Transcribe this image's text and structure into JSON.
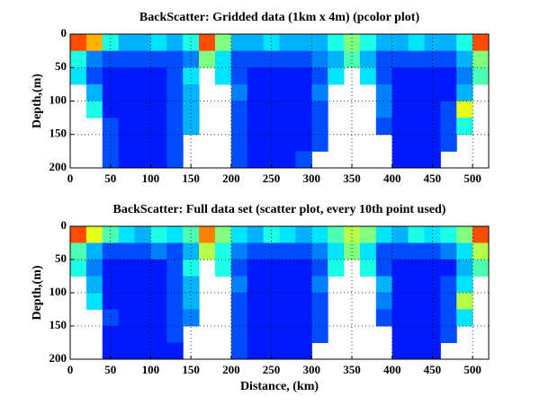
{
  "chart_data": [
    {
      "type": "pcolor",
      "title": "BackScatter: Gridded data (1km x 4m) (pcolor plot)",
      "ylabel": "Depth,(m)",
      "xlim": [
        0,
        520
      ],
      "xticks": [
        0,
        50,
        100,
        150,
        200,
        250,
        300,
        350,
        400,
        450,
        500
      ],
      "ylim": [
        0,
        200
      ],
      "yticks": [
        0,
        50,
        100,
        150,
        200
      ],
      "y_reversed": true,
      "grid": true,
      "colormap": "jet",
      "clim": [
        0,
        1
      ],
      "xbins": [
        0,
        20,
        40,
        60,
        80,
        100,
        120,
        140,
        160,
        180,
        200,
        220,
        240,
        260,
        280,
        300,
        320,
        340,
        360,
        380,
        400,
        420,
        440,
        460,
        480,
        500,
        520
      ],
      "ybins": [
        0,
        25,
        50,
        75,
        100,
        125,
        150,
        175,
        200
      ],
      "z": [
        [
          0.8,
          0.7,
          0.4,
          0.3,
          0.3,
          0.35,
          0.3,
          0.4,
          0.8,
          0.5,
          0.3,
          0.3,
          0.35,
          0.3,
          0.3,
          0.3,
          0.4,
          0.5,
          0.4,
          0.3,
          0.3,
          0.35,
          0.3,
          0.3,
          0.4,
          0.8
        ],
        [
          0.4,
          0.25,
          0.2,
          0.2,
          0.2,
          0.2,
          0.2,
          0.25,
          0.5,
          0.35,
          0.2,
          0.2,
          0.2,
          0.2,
          0.2,
          0.25,
          0.3,
          0.45,
          0.3,
          0.2,
          0.2,
          0.2,
          0.2,
          0.2,
          0.3,
          0.5
        ],
        [
          0.35,
          0.2,
          0.15,
          0.15,
          0.15,
          0.15,
          0.2,
          0.35,
          null,
          0.35,
          0.2,
          0.15,
          0.15,
          0.15,
          0.15,
          0.2,
          0.35,
          null,
          0.35,
          0.2,
          0.15,
          0.15,
          0.15,
          0.15,
          0.25,
          0.45
        ],
        [
          null,
          0.3,
          0.15,
          0.15,
          0.15,
          0.15,
          0.2,
          0.3,
          null,
          null,
          0.25,
          0.15,
          0.15,
          0.15,
          0.15,
          0.25,
          null,
          null,
          null,
          0.25,
          0.15,
          0.15,
          0.15,
          0.15,
          0.3,
          null
        ],
        [
          null,
          0.4,
          0.15,
          0.15,
          0.15,
          0.15,
          0.2,
          0.3,
          null,
          null,
          0.2,
          0.15,
          0.15,
          0.15,
          0.15,
          0.2,
          null,
          null,
          null,
          0.25,
          0.15,
          0.15,
          0.15,
          0.2,
          0.6,
          null
        ],
        [
          null,
          null,
          0.2,
          0.15,
          0.15,
          0.15,
          0.2,
          0.3,
          null,
          null,
          0.2,
          0.15,
          0.15,
          0.15,
          0.15,
          0.2,
          null,
          null,
          null,
          0.2,
          0.15,
          0.15,
          0.15,
          0.2,
          0.4,
          null
        ],
        [
          null,
          null,
          0.2,
          0.15,
          0.15,
          0.15,
          0.2,
          null,
          null,
          null,
          0.2,
          0.15,
          0.15,
          0.15,
          0.15,
          0.2,
          null,
          null,
          null,
          null,
          0.15,
          0.15,
          0.15,
          0.2,
          null,
          null
        ],
        [
          null,
          null,
          0.2,
          0.15,
          0.15,
          0.15,
          0.2,
          null,
          null,
          null,
          0.2,
          0.15,
          0.15,
          0.15,
          0.2,
          null,
          null,
          null,
          null,
          null,
          0.15,
          0.15,
          0.15,
          null,
          null,
          null
        ]
      ]
    },
    {
      "type": "pcolor",
      "title": "BackScatter: Full data set (scatter plot, every 10th point used)",
      "ylabel": "Depth,(m)",
      "xlabel": "Distance, (km)",
      "xlim": [
        0,
        520
      ],
      "xticks": [
        0,
        50,
        100,
        150,
        200,
        250,
        300,
        350,
        400,
        450,
        500
      ],
      "ylim": [
        0,
        200
      ],
      "yticks": [
        0,
        50,
        100,
        150,
        200
      ],
      "y_reversed": true,
      "grid": true,
      "colormap": "jet",
      "clim": [
        0,
        1
      ],
      "xbins": [
        0,
        20,
        40,
        60,
        80,
        100,
        120,
        140,
        160,
        180,
        200,
        220,
        240,
        260,
        280,
        300,
        320,
        340,
        360,
        380,
        400,
        420,
        440,
        460,
        480,
        500,
        520
      ],
      "ybins": [
        0,
        25,
        50,
        75,
        100,
        125,
        150,
        175,
        200
      ],
      "z": [
        [
          0.8,
          0.6,
          0.45,
          0.35,
          0.3,
          0.4,
          0.35,
          0.45,
          0.75,
          0.5,
          0.35,
          0.3,
          0.4,
          0.35,
          0.3,
          0.35,
          0.45,
          0.55,
          0.5,
          0.35,
          0.3,
          0.4,
          0.35,
          0.4,
          0.5,
          0.8
        ],
        [
          0.45,
          0.3,
          0.2,
          0.2,
          0.2,
          0.25,
          0.2,
          0.3,
          0.55,
          0.4,
          0.25,
          0.2,
          0.2,
          0.2,
          0.2,
          0.25,
          0.35,
          0.5,
          0.35,
          0.2,
          0.2,
          0.2,
          0.2,
          0.25,
          0.35,
          0.55
        ],
        [
          0.4,
          0.25,
          0.15,
          0.15,
          0.15,
          0.15,
          0.2,
          0.4,
          null,
          0.4,
          0.2,
          0.15,
          0.15,
          0.15,
          0.15,
          0.2,
          0.4,
          null,
          0.4,
          0.2,
          0.15,
          0.15,
          0.15,
          0.15,
          0.3,
          0.45
        ],
        [
          null,
          0.3,
          0.15,
          0.15,
          0.15,
          0.15,
          0.2,
          0.3,
          null,
          null,
          0.25,
          0.15,
          0.15,
          0.15,
          0.15,
          0.25,
          null,
          null,
          null,
          0.3,
          0.15,
          0.15,
          0.15,
          0.2,
          0.35,
          null
        ],
        [
          null,
          0.35,
          0.15,
          0.15,
          0.15,
          0.15,
          0.2,
          0.3,
          null,
          null,
          0.2,
          0.15,
          0.15,
          0.15,
          0.15,
          0.2,
          null,
          null,
          null,
          0.25,
          0.15,
          0.15,
          0.15,
          0.2,
          0.55,
          null
        ],
        [
          null,
          null,
          0.2,
          0.15,
          0.15,
          0.15,
          0.2,
          0.25,
          null,
          null,
          0.2,
          0.15,
          0.15,
          0.15,
          0.15,
          0.2,
          null,
          null,
          null,
          0.2,
          0.15,
          0.15,
          0.15,
          0.2,
          0.35,
          null
        ],
        [
          null,
          null,
          0.15,
          0.15,
          0.15,
          0.15,
          0.2,
          null,
          null,
          null,
          0.2,
          0.15,
          0.15,
          0.15,
          0.15,
          0.2,
          null,
          null,
          null,
          null,
          0.15,
          0.15,
          0.15,
          0.2,
          null,
          null
        ],
        [
          null,
          null,
          0.15,
          0.15,
          0.15,
          0.15,
          0.15,
          null,
          null,
          null,
          0.2,
          0.15,
          0.15,
          0.15,
          0.15,
          null,
          null,
          null,
          null,
          null,
          0.15,
          0.15,
          0.15,
          null,
          null,
          null
        ]
      ]
    }
  ]
}
